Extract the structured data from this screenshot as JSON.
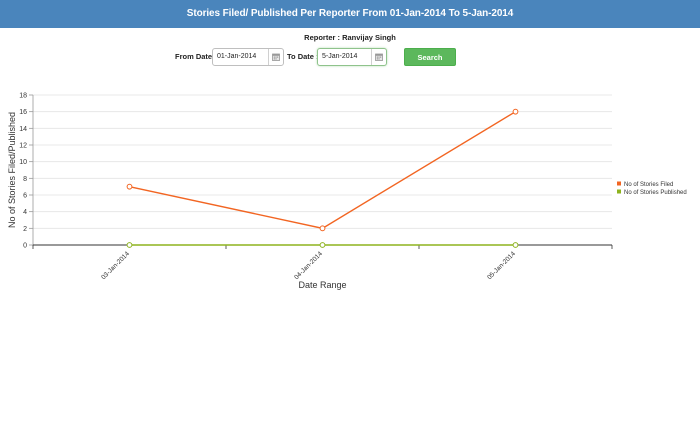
{
  "header": {
    "title": "Stories Filed/ Published Per Reporter From 01-Jan-2014 To 5-Jan-2014"
  },
  "reporter": {
    "text": "Reporter : Ranvijay Singh"
  },
  "filters": {
    "from_label": "From Date :",
    "from_value": "01-Jan-2014",
    "to_label": "To Date :",
    "to_value": "5-Jan-2014",
    "search_label": "Search"
  },
  "chart_data": {
    "type": "line",
    "categories": [
      "03-Jan-2014",
      "04-Jan-2014",
      "05-Jan-2014"
    ],
    "series": [
      {
        "name": "No of Stories Filed",
        "values": [
          7,
          2,
          16
        ],
        "color": "#f26522"
      },
      {
        "name": "No of Stories Published",
        "values": [
          0,
          0,
          0
        ],
        "color": "#8db31e"
      }
    ],
    "xlabel": "Date Range",
    "ylabel": "No of Stories Filed/Published",
    "ylim": [
      0,
      18
    ],
    "yticks": [
      0,
      2,
      4,
      6,
      8,
      10,
      12,
      14,
      16,
      18
    ],
    "grid": true,
    "legend": "right"
  }
}
